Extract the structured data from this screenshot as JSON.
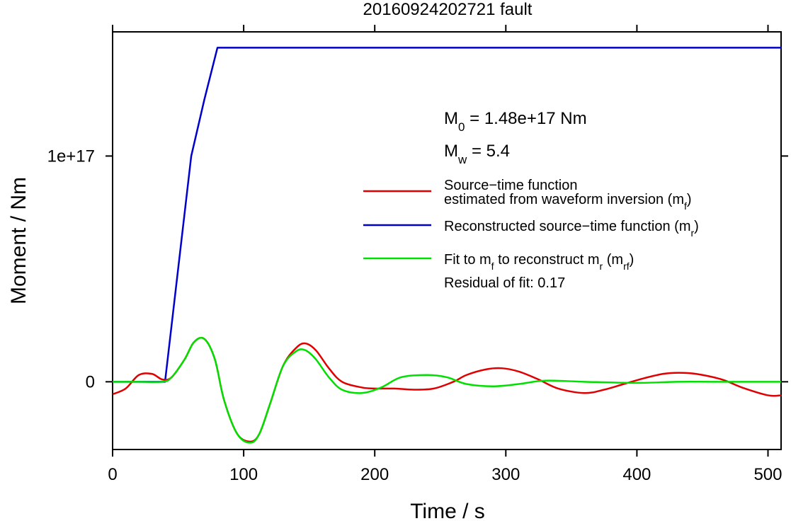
{
  "chart_data": {
    "type": "line",
    "title": "20160924202721 fault",
    "xlabel": "Time / s",
    "ylabel": "Moment / Nm",
    "xlim": [
      0,
      510
    ],
    "ylim": [
      -3e+16,
      1.55e+17
    ],
    "x_ticks": [
      {
        "value": 0,
        "label": "0"
      },
      {
        "value": 100,
        "label": "100"
      },
      {
        "value": 200,
        "label": "200"
      },
      {
        "value": 300,
        "label": "300"
      },
      {
        "value": 400,
        "label": "400"
      },
      {
        "value": 500,
        "label": "500"
      }
    ],
    "y_ticks": [
      {
        "value": 0,
        "label": "0"
      },
      {
        "value": 1e+17,
        "label": "1e+17"
      }
    ],
    "grid": false,
    "legend_position": "right",
    "moment_annotation": {
      "sym": "M",
      "sub": "0",
      "text": " = 1.48e+17 Nm"
    },
    "magnitude_annotation": {
      "sym": "M",
      "sub": "w",
      "text": " = 5.4"
    },
    "residual_text": "Residual of fit: 0.17",
    "legend": [
      {
        "key": "mf",
        "color": "#e00000",
        "lines": [
          "Source−time function",
          "estimated from waveform inversion (m",
          "f",
          ")"
        ]
      },
      {
        "key": "mr",
        "color": "#0000cc",
        "lines": [
          "Reconstructed source−time function (m",
          "r",
          ")"
        ]
      },
      {
        "key": "mrf",
        "color": "#00e000",
        "lines": [
          "Fit to m",
          "f",
          " to reconstruct m",
          "r",
          " (m",
          "rf",
          ")"
        ]
      }
    ],
    "series": [
      {
        "key": "mr",
        "color": "#0000cc",
        "x": [
          0,
          40,
          60,
          70,
          80,
          510
        ],
        "y": [
          0,
          0,
          1e+17,
          1.25e+17,
          1.48e+17,
          1.48e+17
        ]
      },
      {
        "key": "mf",
        "color": "#e00000",
        "x": [
          0,
          10,
          20,
          30,
          38,
          45,
          55,
          62,
          70,
          78,
          85,
          95,
          105,
          112,
          120,
          130,
          140,
          147,
          155,
          165,
          175,
          190,
          200,
          215,
          230,
          245,
          260,
          270,
          285,
          297,
          310,
          325,
          340,
          360,
          375,
          390,
          405,
          420,
          432,
          445,
          465,
          480,
          500,
          510
        ],
        "y": [
          -5500000000000000.0,
          -3000000000000000.0,
          3000000000000000.0,
          3500000000000000.0,
          1000000000000000.0,
          2000000000000000.0,
          1e+16,
          1.75e+16,
          1.9e+16,
          1e+16,
          -8000000000000000.0,
          -2.3e+16,
          -2.65e+16,
          -2.3e+16,
          -1e+16,
          7000000000000000.0,
          1.5e+16,
          1.7e+16,
          1.4e+16,
          6000000000000000.0,
          0,
          -2500000000000000.0,
          -3000000000000000.0,
          -3000000000000000.0,
          -3500000000000000.0,
          -3000000000000000.0,
          0,
          3000000000000000.0,
          5500000000000000.0,
          6000000000000000.0,
          4500000000000000.0,
          1000000000000000.0,
          -3000000000000000.0,
          -5000000000000000.0,
          -3500000000000000.0,
          -1000000000000000.0,
          1500000000000000.0,
          3500000000000000.0,
          4000000000000000.0,
          3500000000000000.0,
          1000000000000000.0,
          -2500000000000000.0,
          -6000000000000000.0,
          -6000000000000000.0
        ]
      },
      {
        "key": "mrf",
        "color": "#00e000",
        "x": [
          0,
          20,
          38,
          45,
          55,
          62,
          70,
          78,
          85,
          95,
          105,
          112,
          120,
          130,
          140,
          147,
          155,
          165,
          175,
          190,
          205,
          220,
          240,
          255,
          270,
          290,
          310,
          330,
          360,
          400,
          430,
          460,
          510
        ],
        "y": [
          0,
          0,
          0,
          2000000000000000.0,
          1e+16,
          1.75e+16,
          1.9e+16,
          1e+16,
          -8000000000000000.0,
          -2.3e+16,
          -2.7e+16,
          -2.3e+16,
          -1e+16,
          7000000000000000.0,
          1.35e+16,
          1.4e+16,
          1e+16,
          2000000000000000.0,
          -3500000000000000.0,
          -5000000000000000.0,
          -2500000000000000.0,
          2000000000000000.0,
          3000000000000000.0,
          2000000000000000.0,
          -1000000000000000.0,
          -2000000000000000.0,
          -1000000000000000.0,
          500000000000000.0,
          0,
          -500000000000000.0,
          0,
          0,
          0
        ]
      }
    ]
  }
}
